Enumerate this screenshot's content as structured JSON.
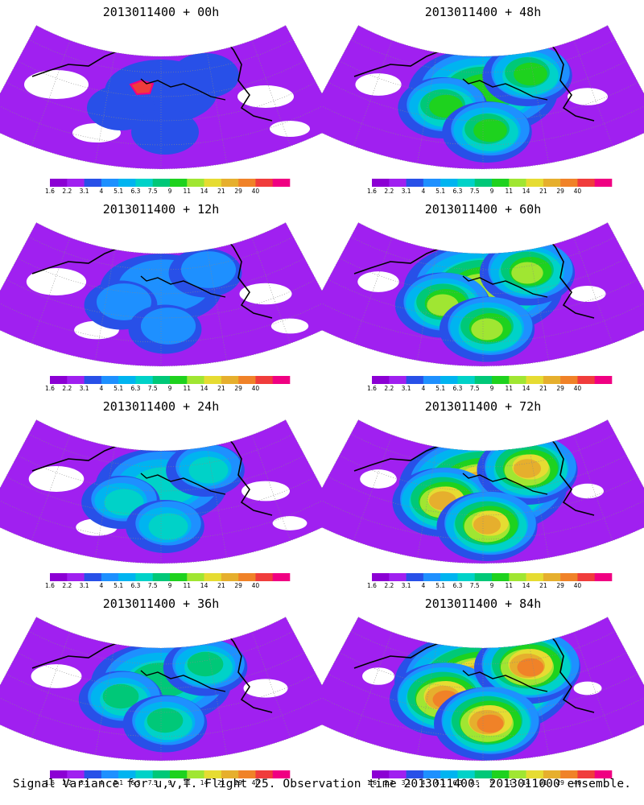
{
  "panels": [
    {
      "title": "2013011400 + 00h",
      "lead_hours": 0
    },
    {
      "title": "2013011400 + 12h",
      "lead_hours": 12
    },
    {
      "title": "2013011400 + 24h",
      "lead_hours": 24
    },
    {
      "title": "2013011400 + 36h",
      "lead_hours": 36
    },
    {
      "title": "2013011400 + 48h",
      "lead_hours": 48
    },
    {
      "title": "2013011400 + 60h",
      "lead_hours": 60
    },
    {
      "title": "2013011400 + 72h",
      "lead_hours": 72
    },
    {
      "title": "2013011400 + 84h",
      "lead_hours": 84
    }
  ],
  "colorbar": {
    "labels": [
      "1.6",
      "2.2",
      "3.1",
      "4",
      "5.1",
      "6.3",
      "7.5",
      "9",
      "11",
      "14",
      "21",
      "29",
      "40"
    ],
    "colors": [
      "#8c00d4",
      "#a020f0",
      "#2850e8",
      "#1e90ff",
      "#00b4f0",
      "#00d2c8",
      "#00c878",
      "#1ed21e",
      "#a0e632",
      "#e6dc32",
      "#e6af2d",
      "#f08228",
      "#f03c3c",
      "#f00082"
    ]
  },
  "footer": "Signal Variance for u,v,T. Flight 25. Observation time 2013011400. 2013011000 ensemble."
}
